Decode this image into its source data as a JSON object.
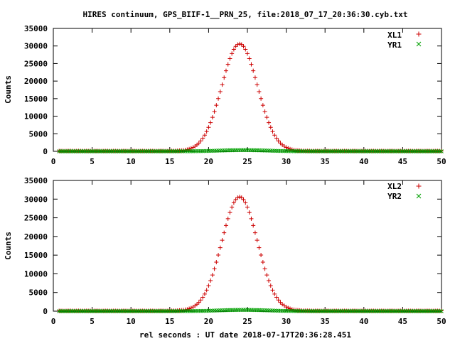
{
  "title": "HIRES continuum, GPS_BIIF-1__PRN_25, file:2018_07_17_20:36:30.cyb.txt",
  "xlabel": "rel seconds : UT date 2018-07-17T20:36:28.451",
  "colors": {
    "x_series": "#cc0000",
    "y_series": "#00a000",
    "axis": "#000000"
  },
  "chart_data": [
    {
      "type": "scatter",
      "ylabel": "Counts",
      "xlim": [
        0,
        50
      ],
      "ylim": [
        0,
        35000
      ],
      "xticks": [
        "0",
        "5",
        "10",
        "15",
        "20",
        "25",
        "30",
        "35",
        "40",
        "45",
        "50"
      ],
      "yticks": [
        "0",
        "5000",
        "10000",
        "15000",
        "20000",
        "25000",
        "30000",
        "35000"
      ],
      "grid": false,
      "legend_position": "top-right",
      "x_step": 0.25,
      "x_start": 0.75,
      "series": [
        {
          "name": "XL1",
          "marker": "+",
          "peak_x": 24.0,
          "peak_y": 30500,
          "sigma": 2.3,
          "baseline": 100
        },
        {
          "name": "YR1",
          "marker": "x",
          "peak_x": 24.5,
          "peak_y": 350,
          "sigma": 3.0,
          "baseline": 0
        }
      ]
    },
    {
      "type": "scatter",
      "ylabel": "Counts",
      "xlim": [
        0,
        50
      ],
      "ylim": [
        0,
        35000
      ],
      "xticks": [
        "0",
        "5",
        "10",
        "15",
        "20",
        "25",
        "30",
        "35",
        "40",
        "45",
        "50"
      ],
      "yticks": [
        "0",
        "5000",
        "10000",
        "15000",
        "20000",
        "25000",
        "30000",
        "35000"
      ],
      "grid": false,
      "legend_position": "top-right",
      "x_step": 0.25,
      "x_start": 0.75,
      "series": [
        {
          "name": "XL2",
          "marker": "+",
          "peak_x": 24.0,
          "peak_y": 30500,
          "sigma": 2.3,
          "baseline": 100
        },
        {
          "name": "YR2",
          "marker": "x",
          "peak_x": 24.5,
          "peak_y": 350,
          "sigma": 3.0,
          "baseline": 0
        }
      ]
    }
  ]
}
